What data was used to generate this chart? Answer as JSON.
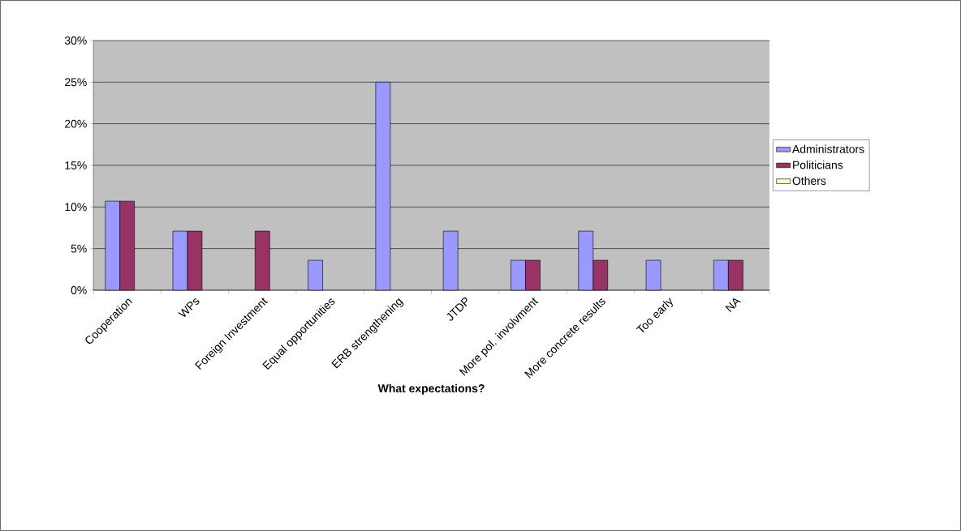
{
  "chart_data": {
    "type": "bar",
    "xlabel": "What expectations?",
    "categories": [
      "Cooperation",
      "WPs",
      "Foreign Investment",
      "Equal opportunities",
      "ERB strengthening",
      "JTDP",
      "More pol. involvment",
      "More concrete results",
      "Too early",
      "NA"
    ],
    "series": [
      {
        "name": "Administrators",
        "color": "#9999ff",
        "values": [
          10.7,
          7.1,
          null,
          3.6,
          25,
          7.1,
          3.6,
          7.1,
          3.6,
          3.6
        ]
      },
      {
        "name": "Politicians",
        "color": "#993366",
        "values": [
          10.7,
          7.1,
          7.1,
          null,
          null,
          null,
          3.6,
          3.6,
          null,
          3.6
        ]
      },
      {
        "name": "Others",
        "color": "#ffffcc",
        "values": [
          null,
          null,
          null,
          null,
          null,
          null,
          null,
          null,
          null,
          null
        ]
      }
    ],
    "ylim": [
      0,
      30
    ],
    "yticks": [
      {
        "value": 0,
        "label": "0%"
      },
      {
        "value": 5,
        "label": "5%"
      },
      {
        "value": 10,
        "label": "10%"
      },
      {
        "value": 15,
        "label": "15%"
      },
      {
        "value": 20,
        "label": "20%"
      },
      {
        "value": 25,
        "label": "25%"
      },
      {
        "value": 30,
        "label": "30%"
      }
    ],
    "grid": "y",
    "legend": "right"
  }
}
